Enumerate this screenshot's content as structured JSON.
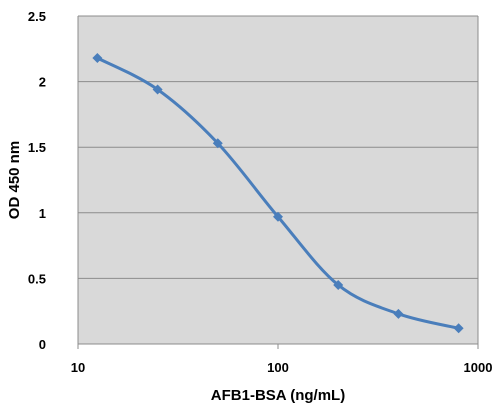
{
  "chart_data": {
    "type": "line",
    "title": "",
    "xlabel": "AFB1-BSA (ng/mL)",
    "ylabel": "OD 450 nm",
    "x_scale": "log",
    "xlim": [
      10,
      1000
    ],
    "ylim": [
      0,
      2.5
    ],
    "x_ticks": [
      "10",
      "100",
      "1000"
    ],
    "y_ticks": [
      "0",
      "0.5",
      "1",
      "1.5",
      "2",
      "2.5"
    ],
    "grid": "horizontal",
    "plot_background": "#d9d9d9",
    "series": [
      {
        "color": "#4a7ebb",
        "marker": "diamond",
        "smooth": true,
        "x": [
          12.5,
          25,
          50,
          100,
          200,
          400,
          800
        ],
        "y": [
          2.18,
          1.94,
          1.53,
          0.97,
          0.45,
          0.23,
          0.12
        ]
      }
    ]
  }
}
